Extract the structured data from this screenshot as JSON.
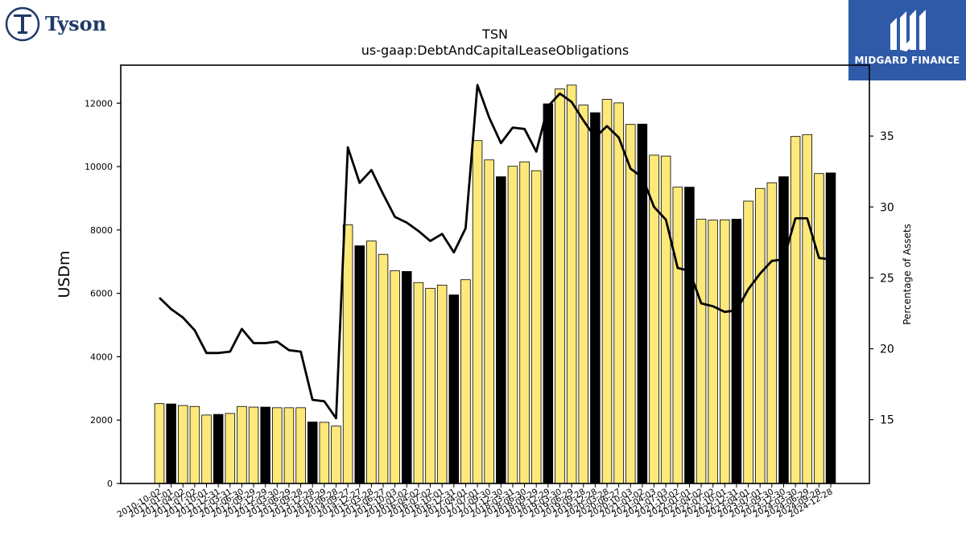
{
  "branding": {
    "left_logo_text": "Tyson",
    "right_logo_text": "MIDGARD FINANCE",
    "right_logo_bg": "#2f5aa8"
  },
  "chart_data": {
    "type": "bar",
    "title": "TSN",
    "subtitle": "us-gaap:DebtAndCapitalLeaseObligations",
    "ylabel": "USDm",
    "y2label": "Percentage of Assets",
    "ylim": [
      0,
      13200
    ],
    "y2lim": [
      10.5,
      40
    ],
    "yticks": [
      0,
      2000,
      4000,
      6000,
      8000,
      10000,
      12000
    ],
    "y2ticks": [
      15,
      20,
      25,
      30,
      35
    ],
    "colors": {
      "quarter_bar": "#fde97a",
      "annual_bar": "#000000",
      "line": "#000000"
    },
    "categories": [
      "2010-10-02",
      "2011-01-01",
      "2011-04-02",
      "2011-07-02",
      "2011-10-01",
      "2011-12-31",
      "2012-03-31",
      "2012-06-30",
      "2012-09-29",
      "2012-12-29",
      "2013-03-30",
      "2013-06-29",
      "2013-09-28",
      "2013-12-28",
      "2014-03-29",
      "2014-06-28",
      "2014-09-27",
      "2014-12-27",
      "2015-03-28",
      "2015-06-27",
      "2015-10-03",
      "2016-01-02",
      "2016-04-02",
      "2016-07-02",
      "2016-10-01",
      "2016-12-31",
      "2017-04-01",
      "2017-07-01",
      "2017-09-30",
      "2017-12-30",
      "2018-03-31",
      "2018-06-30",
      "2018-09-29",
      "2018-12-29",
      "2019-03-30",
      "2019-06-29",
      "2019-09-28",
      "2019-12-28",
      "2020-03-28",
      "2020-06-27",
      "2020-10-03",
      "2021-01-02",
      "2021-04-03",
      "2021-07-03",
      "2021-10-02",
      "2022-01-01",
      "2022-04-02",
      "2022-07-02",
      "2022-10-01",
      "2022-12-31",
      "2023-04-01",
      "2023-07-01",
      "2023-09-30",
      "2023-12-30",
      "2024-03-30",
      "2024-06-29",
      "2024-09-28",
      "2024-12-28"
    ],
    "annual_flags": [
      0,
      1,
      0,
      0,
      0,
      1,
      0,
      0,
      0,
      1,
      0,
      0,
      0,
      1,
      0,
      0,
      0,
      1,
      0,
      0,
      0,
      1,
      0,
      0,
      0,
      1,
      0,
      0,
      0,
      1,
      0,
      0,
      0,
      1,
      0,
      0,
      0,
      1,
      0,
      0,
      0,
      1,
      0,
      0,
      0,
      1,
      0,
      0,
      0,
      1,
      0,
      0,
      0,
      1,
      0,
      0,
      0,
      1
    ],
    "series": [
      {
        "name": "USDm",
        "values": [
          2520,
          2510,
          2460,
          2430,
          2160,
          2180,
          2210,
          2430,
          2410,
          2410,
          2390,
          2390,
          2390,
          1940,
          1930,
          1810,
          8160,
          7500,
          7650,
          7230,
          6710,
          6690,
          6340,
          6160,
          6260,
          5950,
          6430,
          10820,
          10210,
          9680,
          10010,
          10150,
          9870,
          11980,
          12450,
          12570,
          11940,
          11700,
          12120,
          12010,
          11330,
          11340,
          10360,
          10330,
          9350,
          9350,
          8340,
          8310,
          8320,
          8340,
          8910,
          9310,
          9490,
          9680,
          10950,
          11010,
          9780,
          9800
        ]
      },
      {
        "name": "Percentage of Assets",
        "values": [
          23.6,
          22.8,
          22.2,
          21.3,
          19.7,
          19.7,
          19.8,
          21.4,
          20.4,
          20.4,
          20.5,
          19.9,
          19.8,
          16.4,
          16.3,
          15.1,
          34.2,
          31.7,
          32.6,
          30.9,
          29.3,
          28.9,
          28.3,
          27.6,
          28.1,
          26.8,
          28.5,
          38.6,
          36.3,
          34.5,
          35.6,
          35.5,
          33.9,
          37.1,
          38.0,
          37.4,
          36.1,
          34.9,
          35.7,
          34.9,
          32.7,
          32.1,
          30.0,
          29.1,
          25.7,
          25.5,
          23.2,
          23.0,
          22.6,
          22.7,
          24.2,
          25.3,
          26.2,
          26.3,
          29.2,
          29.2,
          26.4,
          26.3
        ]
      }
    ]
  }
}
